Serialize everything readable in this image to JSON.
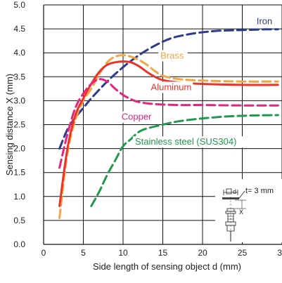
{
  "chart_data": {
    "type": "line",
    "xlabel": "Side length of sensing object d (mm)",
    "ylabel": "Sensing distance X (mm)",
    "xlim": [
      0,
      30
    ],
    "ylim": [
      0,
      5
    ],
    "x_ticks": [
      "0",
      "5",
      "10",
      "15",
      "20",
      "25",
      "30"
    ],
    "y_ticks": [
      "0.0",
      "0.5",
      "1.0",
      "1.5",
      "2.0",
      "2.5",
      "3.0",
      "3.5",
      "4.0",
      "4.5",
      "5.0"
    ],
    "grid": true,
    "series": [
      {
        "name": "Iron",
        "color": "#2e3a8c",
        "dash": "dashed",
        "points": [
          [
            2,
            2.0
          ],
          [
            3,
            2.4
          ],
          [
            4,
            2.65
          ],
          [
            5,
            2.85
          ],
          [
            6,
            3.05
          ],
          [
            8,
            3.4
          ],
          [
            10,
            3.7
          ],
          [
            12,
            3.95
          ],
          [
            14,
            4.15
          ],
          [
            16,
            4.3
          ],
          [
            18,
            4.38
          ],
          [
            20,
            4.43
          ],
          [
            22,
            4.46
          ],
          [
            24,
            4.47
          ],
          [
            26,
            4.48
          ],
          [
            28,
            4.49
          ],
          [
            29.5,
            4.49
          ]
        ]
      },
      {
        "name": "Brass",
        "color": "#f2a541",
        "dash": "dashed",
        "points": [
          [
            2,
            0.55
          ],
          [
            3,
            1.9
          ],
          [
            4,
            2.6
          ],
          [
            5,
            3.0
          ],
          [
            6,
            3.25
          ],
          [
            7,
            3.55
          ],
          [
            8,
            3.8
          ],
          [
            9,
            3.92
          ],
          [
            10,
            3.95
          ],
          [
            11,
            3.92
          ],
          [
            12,
            3.85
          ],
          [
            13,
            3.75
          ],
          [
            14,
            3.62
          ],
          [
            15,
            3.52
          ],
          [
            17,
            3.45
          ],
          [
            20,
            3.42
          ],
          [
            25,
            3.4
          ],
          [
            29.5,
            3.4
          ]
        ]
      },
      {
        "name": "Aluminum",
        "color": "#e8342a",
        "dash": "solid",
        "points": [
          [
            2,
            0.8
          ],
          [
            3,
            2.0
          ],
          [
            4,
            2.7
          ],
          [
            5,
            3.05
          ],
          [
            6,
            3.35
          ],
          [
            7,
            3.6
          ],
          [
            8,
            3.75
          ],
          [
            9,
            3.8
          ],
          [
            10,
            3.82
          ],
          [
            11,
            3.8
          ],
          [
            12,
            3.72
          ],
          [
            13,
            3.6
          ],
          [
            14,
            3.5
          ],
          [
            15,
            3.43
          ],
          [
            17,
            3.38
          ],
          [
            20,
            3.35
          ],
          [
            25,
            3.33
          ],
          [
            29.5,
            3.33
          ]
        ]
      },
      {
        "name": "Copper",
        "color": "#e4247e",
        "dash": "dashed",
        "points": [
          [
            2,
            1.6
          ],
          [
            3,
            2.3
          ],
          [
            4,
            2.85
          ],
          [
            5,
            3.15
          ],
          [
            6,
            3.35
          ],
          [
            7,
            3.45
          ],
          [
            8,
            3.4
          ],
          [
            9,
            3.25
          ],
          [
            10,
            3.12
          ],
          [
            11,
            3.03
          ],
          [
            12,
            2.97
          ],
          [
            14,
            2.93
          ],
          [
            17,
            2.91
          ],
          [
            20,
            2.91
          ],
          [
            25,
            2.9
          ],
          [
            29.5,
            2.9
          ]
        ]
      },
      {
        "name": "Stainless steel (SUS304)",
        "color": "#1f9a4c",
        "dash": "dashed",
        "points": [
          [
            6,
            0.8
          ],
          [
            7,
            1.1
          ],
          [
            8,
            1.45
          ],
          [
            9,
            1.75
          ],
          [
            10,
            2.05
          ],
          [
            11,
            2.2
          ],
          [
            12,
            2.35
          ],
          [
            13,
            2.42
          ],
          [
            15,
            2.5
          ],
          [
            17,
            2.57
          ],
          [
            20,
            2.63
          ],
          [
            23,
            2.67
          ],
          [
            26,
            2.69
          ],
          [
            29.5,
            2.7
          ]
        ]
      }
    ],
    "annotation": {
      "thickness_label": "t= 3 mm",
      "d_label": "d",
      "x_label": "X"
    }
  }
}
